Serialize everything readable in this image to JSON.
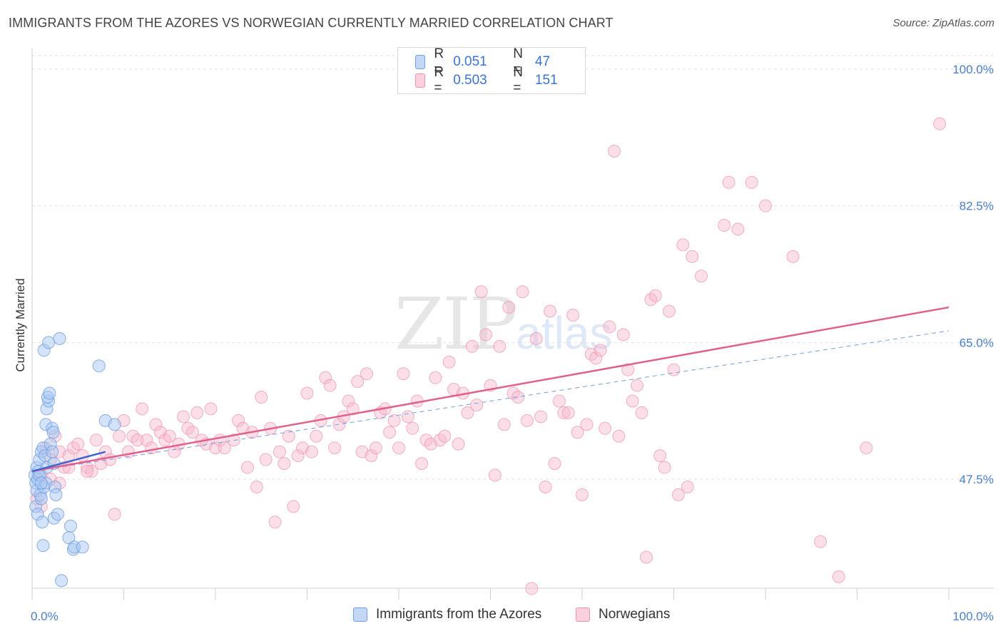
{
  "header": {
    "title": "IMMIGRANTS FROM THE AZORES VS NORWEGIAN CURRENTLY MARRIED CORRELATION CHART",
    "source": "Source: ZipAtlas.com"
  },
  "watermark": {
    "zip": "ZIP",
    "atlas": "atlas"
  },
  "legend_top": {
    "rows": [
      {
        "r_label": "R =",
        "r_value": "0.051",
        "n_label": "N =",
        "n_value": "47"
      },
      {
        "r_label": "R =",
        "r_value": "0.503",
        "n_label": "N =",
        "n_value": "151"
      }
    ]
  },
  "legend_bottom": {
    "items": [
      {
        "label": "Immigrants from the Azores"
      },
      {
        "label": "Norwegians"
      }
    ]
  },
  "chart_data": {
    "type": "scatter",
    "title": "IMMIGRANTS FROM THE AZORES VS NORWEGIAN CURRENTLY MARRIED CORRELATION CHART",
    "xlabel": "",
    "ylabel": "Currently Married",
    "xlim": [
      0,
      100
    ],
    "ylim": [
      32,
      102
    ],
    "x_tick_labels": [
      "0.0%",
      "100.0%"
    ],
    "y_ticks": [
      47.5,
      65.0,
      82.5,
      100.0
    ],
    "y_tick_labels": [
      "47.5%",
      "65.0%",
      "82.5%",
      "100.0%"
    ],
    "grid": true,
    "legend_position": "top-center",
    "colors": {
      "azores_fill": "#a9c8f2",
      "azores_stroke": "#6f9fe0",
      "azores_line": "#3f66cc",
      "norwegian_fill": "#f7b8cc",
      "norwegian_stroke": "#ec92b0",
      "norwegian_line": "#e0608e",
      "tick_text": "#4a7ecf"
    },
    "series": [
      {
        "name": "Immigrants from the Azores",
        "R": 0.051,
        "N": 47,
        "trend": {
          "x": [
            0,
            8
          ],
          "y": [
            48.5,
            51.0
          ]
        },
        "trend_ext": {
          "x": [
            0,
            100
          ],
          "y": [
            48.5,
            66.5
          ]
        },
        "points": [
          [
            0.3,
            48.0
          ],
          [
            0.4,
            47.0
          ],
          [
            0.5,
            49.0
          ],
          [
            0.5,
            46.0
          ],
          [
            0.6,
            47.5
          ],
          [
            0.7,
            48.5
          ],
          [
            0.8,
            50.0
          ],
          [
            0.9,
            45.5
          ],
          [
            0.4,
            44.0
          ],
          [
            0.6,
            43.0
          ],
          [
            1.0,
            51.0
          ],
          [
            1.2,
            51.5
          ],
          [
            1.1,
            42.0
          ],
          [
            1.3,
            46.5
          ],
          [
            1.5,
            47.0
          ],
          [
            1.0,
            45.0
          ],
          [
            1.4,
            50.5
          ],
          [
            1.6,
            49.0
          ],
          [
            2.0,
            52.0
          ],
          [
            2.2,
            51.0
          ],
          [
            2.4,
            49.5
          ],
          [
            2.5,
            46.5
          ],
          [
            2.6,
            45.5
          ],
          [
            2.4,
            42.5
          ],
          [
            2.8,
            43.0
          ],
          [
            1.5,
            54.5
          ],
          [
            1.6,
            56.5
          ],
          [
            1.8,
            57.5
          ],
          [
            1.7,
            58.0
          ],
          [
            1.9,
            58.5
          ],
          [
            2.2,
            54.0
          ],
          [
            2.3,
            53.5
          ],
          [
            1.3,
            64.0
          ],
          [
            1.8,
            65.0
          ],
          [
            3.0,
            65.5
          ],
          [
            7.3,
            62.0
          ],
          [
            8.0,
            55.0
          ],
          [
            9.0,
            54.5
          ],
          [
            4.2,
            41.5
          ],
          [
            4.0,
            40.0
          ],
          [
            1.2,
            39.0
          ],
          [
            4.5,
            38.5
          ],
          [
            4.6,
            38.8
          ],
          [
            5.5,
            38.8
          ],
          [
            3.2,
            34.5
          ],
          [
            0.8,
            48.0
          ],
          [
            1.0,
            47.0
          ]
        ]
      },
      {
        "name": "Norwegians",
        "R": 0.503,
        "N": 151,
        "trend": {
          "x": [
            0,
            100
          ],
          "y": [
            48.5,
            69.5
          ]
        },
        "points": [
          [
            0.5,
            45.0
          ],
          [
            1.0,
            48.0
          ],
          [
            1.5,
            51.5
          ],
          [
            2.0,
            50.0
          ],
          [
            2.5,
            53.0
          ],
          [
            3.0,
            51.0
          ],
          [
            3.5,
            49.0
          ],
          [
            4.0,
            50.5
          ],
          [
            4.5,
            51.5
          ],
          [
            5.0,
            52.0
          ],
          [
            5.5,
            50.5
          ],
          [
            6.0,
            49.0
          ],
          [
            6.5,
            48.5
          ],
          [
            7.0,
            52.5
          ],
          [
            7.5,
            49.5
          ],
          [
            8.0,
            51.0
          ],
          [
            8.5,
            50.0
          ],
          [
            9.0,
            43.0
          ],
          [
            9.5,
            53.0
          ],
          [
            10.0,
            55.0
          ],
          [
            10.5,
            51.0
          ],
          [
            11.0,
            53.0
          ],
          [
            11.5,
            52.5
          ],
          [
            12.0,
            56.5
          ],
          [
            12.5,
            52.5
          ],
          [
            13.0,
            51.5
          ],
          [
            13.5,
            54.5
          ],
          [
            14.0,
            53.5
          ],
          [
            14.5,
            52.5
          ],
          [
            15.0,
            53.0
          ],
          [
            15.5,
            51.0
          ],
          [
            16.0,
            52.0
          ],
          [
            16.5,
            55.5
          ],
          [
            17.0,
            54.0
          ],
          [
            17.5,
            53.5
          ],
          [
            18.0,
            56.0
          ],
          [
            18.5,
            52.5
          ],
          [
            19.0,
            52.0
          ],
          [
            19.5,
            56.5
          ],
          [
            20.0,
            51.5
          ],
          [
            20.5,
            52.5
          ],
          [
            21.0,
            51.5
          ],
          [
            22.0,
            52.5
          ],
          [
            22.5,
            55.0
          ],
          [
            23.0,
            54.0
          ],
          [
            23.5,
            49.0
          ],
          [
            24.0,
            53.5
          ],
          [
            24.5,
            46.5
          ],
          [
            25.0,
            58.0
          ],
          [
            25.5,
            50.0
          ],
          [
            26.0,
            54.0
          ],
          [
            26.5,
            42.0
          ],
          [
            27.0,
            51.0
          ],
          [
            27.5,
            49.5
          ],
          [
            28.0,
            53.0
          ],
          [
            28.5,
            44.0
          ],
          [
            29.0,
            50.5
          ],
          [
            29.5,
            51.5
          ],
          [
            30.0,
            58.5
          ],
          [
            30.5,
            51.0
          ],
          [
            31.0,
            53.0
          ],
          [
            31.5,
            55.0
          ],
          [
            32.0,
            60.5
          ],
          [
            32.5,
            59.5
          ],
          [
            33.0,
            51.5
          ],
          [
            33.5,
            54.5
          ],
          [
            34.0,
            55.5
          ],
          [
            34.5,
            57.5
          ],
          [
            35.0,
            56.5
          ],
          [
            35.5,
            60.0
          ],
          [
            36.0,
            51.0
          ],
          [
            36.5,
            61.0
          ],
          [
            37.0,
            50.5
          ],
          [
            37.5,
            51.5
          ],
          [
            38.0,
            56.0
          ],
          [
            38.5,
            56.5
          ],
          [
            39.0,
            53.5
          ],
          [
            39.5,
            55.0
          ],
          [
            40.0,
            51.5
          ],
          [
            40.5,
            61.0
          ],
          [
            41.0,
            55.5
          ],
          [
            41.5,
            54.0
          ],
          [
            42.0,
            57.5
          ],
          [
            42.5,
            49.5
          ],
          [
            43.0,
            52.5
          ],
          [
            43.5,
            52.0
          ],
          [
            44.0,
            60.5
          ],
          [
            44.5,
            52.5
          ],
          [
            45.0,
            53.0
          ],
          [
            45.5,
            62.5
          ],
          [
            46.0,
            59.0
          ],
          [
            46.5,
            52.0
          ],
          [
            47.0,
            58.5
          ],
          [
            47.5,
            56.0
          ],
          [
            48.0,
            64.5
          ],
          [
            48.5,
            57.0
          ],
          [
            49.0,
            71.5
          ],
          [
            49.5,
            66.0
          ],
          [
            50.0,
            59.5
          ],
          [
            50.5,
            48.0
          ],
          [
            51.0,
            64.5
          ],
          [
            51.5,
            54.5
          ],
          [
            52.0,
            69.5
          ],
          [
            52.5,
            58.5
          ],
          [
            53.0,
            58.0
          ],
          [
            53.5,
            71.5
          ],
          [
            54.0,
            55.0
          ],
          [
            54.5,
            33.5
          ],
          [
            55.0,
            65.5
          ],
          [
            55.5,
            55.5
          ],
          [
            56.0,
            46.5
          ],
          [
            56.5,
            69.0
          ],
          [
            57.0,
            49.5
          ],
          [
            57.5,
            57.5
          ],
          [
            58.0,
            56.0
          ],
          [
            58.5,
            56.0
          ],
          [
            59.0,
            68.5
          ],
          [
            59.5,
            53.5
          ],
          [
            60.0,
            45.5
          ],
          [
            60.5,
            54.5
          ],
          [
            61.0,
            63.5
          ],
          [
            61.5,
            63.0
          ],
          [
            62.0,
            64.0
          ],
          [
            62.5,
            54.0
          ],
          [
            63.0,
            67.0
          ],
          [
            63.5,
            89.5
          ],
          [
            64.0,
            53.0
          ],
          [
            64.5,
            66.0
          ],
          [
            65.0,
            61.5
          ],
          [
            65.5,
            57.5
          ],
          [
            66.0,
            59.5
          ],
          [
            66.5,
            56.0
          ],
          [
            67.0,
            37.5
          ],
          [
            67.5,
            70.5
          ],
          [
            68.0,
            71.0
          ],
          [
            68.5,
            50.5
          ],
          [
            69.0,
            49.0
          ],
          [
            69.5,
            69.0
          ],
          [
            70.0,
            61.5
          ],
          [
            70.5,
            45.5
          ],
          [
            71.0,
            77.5
          ],
          [
            71.5,
            46.5
          ],
          [
            72.0,
            76.0
          ],
          [
            73.0,
            73.5
          ],
          [
            75.5,
            80.0
          ],
          [
            76.0,
            85.5
          ],
          [
            77.0,
            79.5
          ],
          [
            78.5,
            85.5
          ],
          [
            80.0,
            82.5
          ],
          [
            83.0,
            76.0
          ],
          [
            86.0,
            39.5
          ],
          [
            88.0,
            35.0
          ],
          [
            91.0,
            51.5
          ],
          [
            99.0,
            93.0
          ],
          [
            4.0,
            49.0
          ],
          [
            6.0,
            48.5
          ],
          [
            2.0,
            47.5
          ],
          [
            3.0,
            47.0
          ],
          [
            1.0,
            44.0
          ]
        ]
      }
    ]
  }
}
